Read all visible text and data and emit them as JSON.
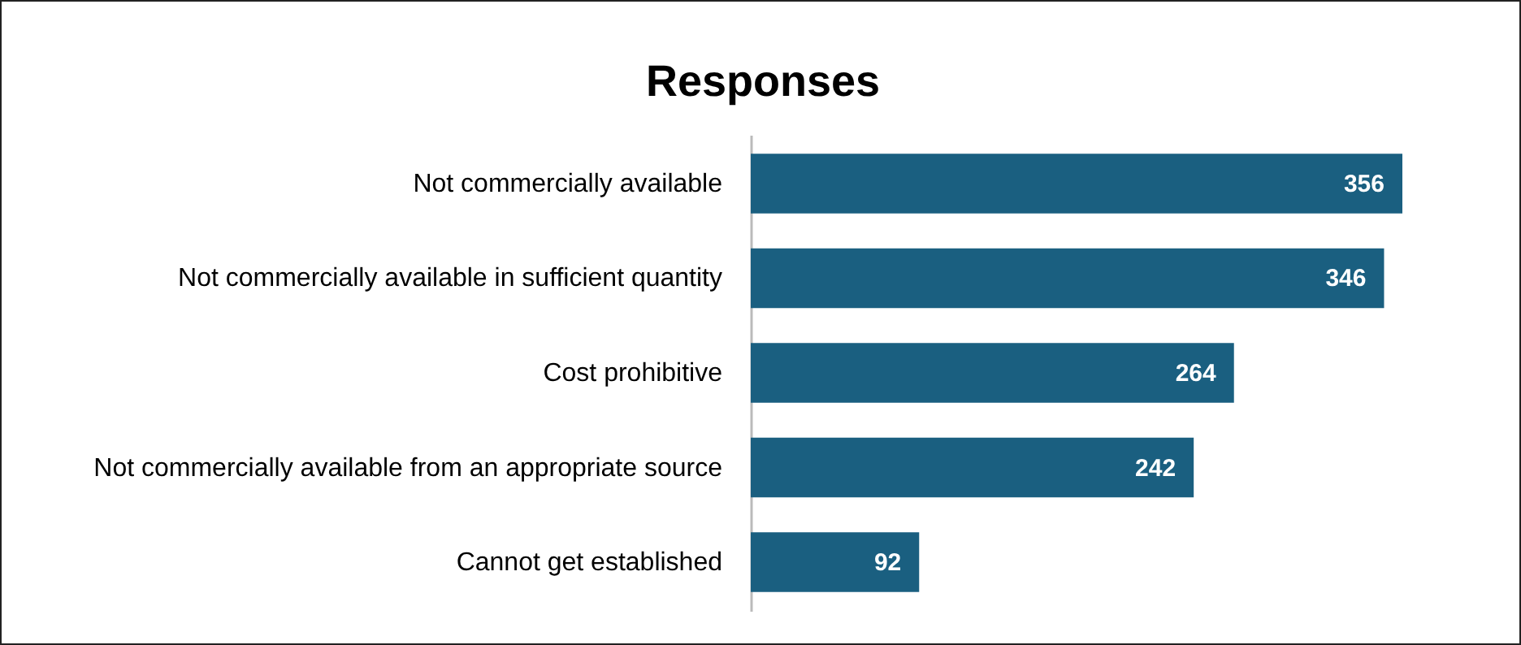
{
  "chart_data": {
    "type": "bar",
    "title": "Responses",
    "orientation": "horizontal",
    "categories": [
      "Not commercially available",
      "Not commercially available in sufficient quantity",
      "Cost prohibitive",
      "Not commercially available from an appropriate source",
      "Cannot get established"
    ],
    "values": [
      356,
      346,
      264,
      242,
      92
    ],
    "color": "#1a5f80",
    "data_labels": true
  }
}
